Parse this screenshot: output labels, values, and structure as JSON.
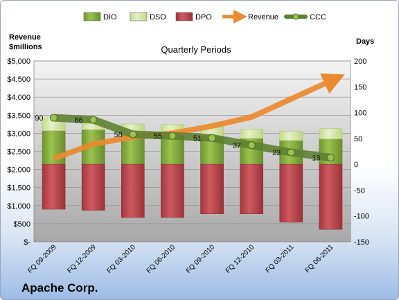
{
  "company": "Apache Corp.",
  "chart_data": {
    "type": "bar",
    "title": "Quarterly Periods",
    "ylabel_left": [
      "Revenue",
      "$millions"
    ],
    "ylabel_right": "Days",
    "categories": [
      "FQ 09-2009",
      "FQ 12-2009",
      "FQ 03-2010",
      "FQ 06-2010",
      "FQ 09-2010",
      "FQ 12-2010",
      "FQ 03-2011",
      "FQ 06-2011"
    ],
    "left_axis": {
      "min": 0,
      "max": 5000,
      "step": 500,
      "ticks": [
        "$-",
        "$500",
        "$1,000",
        "$1,500",
        "$2,000",
        "$2,500",
        "$3,000",
        "$3,500",
        "$4,000",
        "$4,500",
        "$5,000"
      ]
    },
    "right_axis": {
      "min": -150,
      "max": 200,
      "step": 50,
      "ticks": [
        "-150",
        "-100",
        "-50",
        "0",
        "50",
        "100",
        "150",
        "200"
      ]
    },
    "series": [
      {
        "name": "DIO",
        "color": "#7fa63a",
        "values": [
          65,
          67,
          58,
          57,
          54,
          50,
          46,
          49
        ]
      },
      {
        "name": "DSO",
        "color": "#d2e5a4",
        "values": [
          25,
          19,
          20,
          20,
          20,
          18,
          18,
          20
        ]
      },
      {
        "name": "DPO",
        "color": "#b8444a",
        "values": [
          -87,
          -89,
          -103,
          -103,
          -96,
          -96,
          -112,
          -126
        ]
      },
      {
        "name": "Revenue",
        "color": "#ec8a2f",
        "values": [
          2300,
          2700,
          2900,
          3000,
          3200,
          3450,
          3950,
          4450
        ]
      },
      {
        "name": "CCC",
        "color": "#5c7f30",
        "values": [
          90,
          86,
          58,
          55,
          51,
          37,
          23,
          13
        ]
      }
    ],
    "legend_position": "top",
    "grid": true
  }
}
